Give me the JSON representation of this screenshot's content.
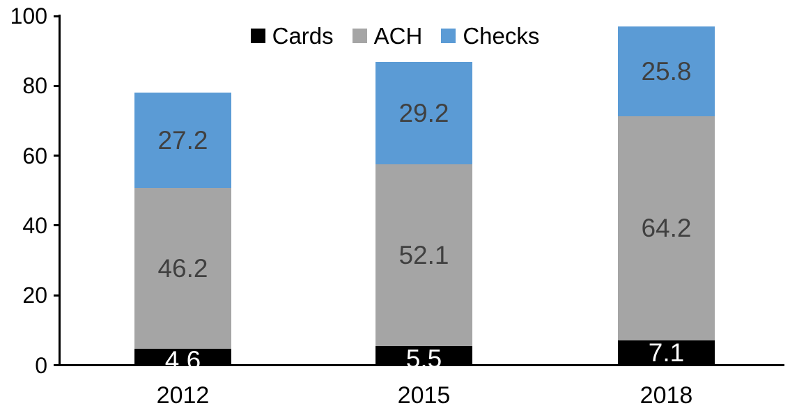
{
  "chart_data": {
    "type": "bar",
    "stacked": true,
    "title": "",
    "xlabel": "",
    "ylabel": "",
    "categories": [
      "2012",
      "2015",
      "2018"
    ],
    "series": [
      {
        "name": "Cards",
        "color": "#000000",
        "label_color": "#ffffff",
        "values": [
          4.6,
          5.5,
          7.1
        ]
      },
      {
        "name": "ACH",
        "color": "#a5a5a5",
        "label_color": "#404040",
        "values": [
          46.2,
          52.1,
          64.2
        ]
      },
      {
        "name": "Checks",
        "color": "#5b9bd5",
        "label_color": "#404040",
        "values": [
          27.2,
          29.2,
          25.8
        ]
      }
    ],
    "totals": [
      78.0,
      86.8,
      97.1
    ],
    "ylim": [
      0,
      100
    ],
    "yticks": [
      0,
      20,
      40,
      60,
      80,
      100
    ],
    "legend_position": "top-center",
    "grid": false,
    "axis_color": "#000000",
    "background_color": "#ffffff"
  }
}
